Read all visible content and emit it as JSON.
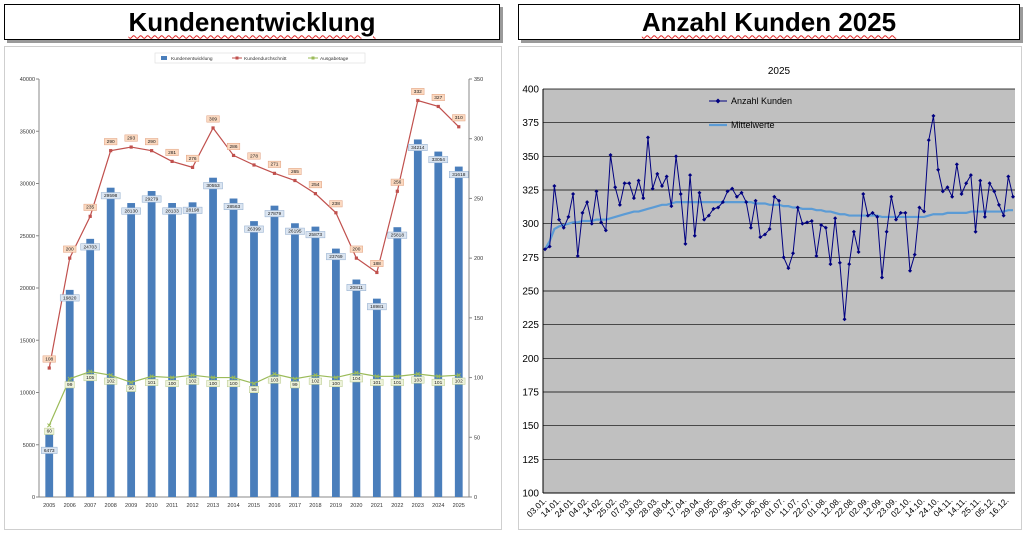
{
  "titles": {
    "left": "Kundenentwicklung",
    "right": "Anzahl Kunden 2025"
  },
  "chart_data": [
    {
      "type": "bar",
      "categories": [
        "2005",
        "2006",
        "2007",
        "2008",
        "2009",
        "2010",
        "2011",
        "2012",
        "2013",
        "2014",
        "2015",
        "2016",
        "2017",
        "2018",
        "2019",
        "2020",
        "2021",
        "2022",
        "2023",
        "2024",
        "2025"
      ],
      "series": [
        {
          "name": "Kundenentwicklung",
          "type": "bar",
          "axis": "left",
          "color": "#4a7ebb",
          "values": [
            6473,
            19820,
            24703,
            29598,
            28130,
            29279,
            28133,
            28198,
            30553,
            28563,
            26399,
            27879,
            26195,
            25873,
            23769,
            20811,
            18981,
            25818,
            34214,
            33054,
            31618
          ],
          "labels": [
            "6473",
            "19820",
            "24703",
            "29598",
            "28130",
            "29279",
            "28133",
            "28198",
            "30553",
            "28563",
            "26399",
            "27879",
            "26195",
            "25873",
            "23769",
            "20811",
            "18981",
            "25818",
            "34214",
            "33054",
            "31618"
          ]
        },
        {
          "name": "Kundendurchschnitt",
          "type": "line",
          "axis": "right",
          "color": "#c0504d",
          "values": [
            108,
            200,
            235,
            290,
            293,
            290,
            281,
            276,
            309,
            286,
            278,
            271,
            265,
            254,
            238,
            200,
            188,
            256,
            332,
            327,
            310
          ],
          "labels": [
            "108",
            "200",
            "235",
            "290",
            "293",
            "290",
            "281",
            "276",
            "309",
            "286",
            "278",
            "271",
            "265",
            "254",
            "238",
            "200",
            "188",
            "256",
            "332",
            "327",
            "310"
          ]
        },
        {
          "name": "Ausgabetage",
          "type": "line",
          "axis": "right",
          "color": "#9bbb59",
          "values": [
            60,
            99,
            105,
            102,
            96,
            101,
            100,
            102,
            100,
            100,
            95,
            103,
            99,
            102,
            100,
            104,
            101,
            101,
            103,
            101,
            102
          ],
          "labels": [
            "60",
            "99",
            "105",
            "102",
            "96",
            "101",
            "100",
            "102",
            "100",
            "100",
            "95",
            "103",
            "99",
            "102",
            "100",
            "104",
            "101",
            "101",
            "103",
            "101",
            "102"
          ]
        }
      ],
      "y_left": {
        "min": 0,
        "max": 40000,
        "step": 5000,
        "ticks": [
          "0",
          "5000",
          "10000",
          "15000",
          "20000",
          "25000",
          "30000",
          "35000",
          "40000"
        ]
      },
      "y_right": {
        "min": 0,
        "max": 350,
        "step": 50,
        "ticks": [
          "0",
          "50",
          "100",
          "150",
          "200",
          "250",
          "300",
          "350"
        ]
      },
      "legend": {
        "position": "top",
        "entries": [
          "Kundenentwicklung",
          "Kundendurchschnitt",
          "Ausgabetage"
        ]
      },
      "grid": false
    },
    {
      "type": "line",
      "title": "2025",
      "ylim": [
        100,
        400
      ],
      "y_ticks": [
        "100",
        "125",
        "150",
        "175",
        "200",
        "225",
        "250",
        "275",
        "300",
        "325",
        "350",
        "375",
        "400"
      ],
      "grid": true,
      "background": "#c0c0c0",
      "legend": {
        "position": "top-left",
        "entries": [
          "Anzahl Kunden",
          "Mittelwerte"
        ]
      },
      "x_labels": [
        "03.01.",
        "14.01.",
        "24.01.",
        "04.02.",
        "14.02.",
        "25.02.",
        "07.03.",
        "18.03.",
        "28.03.",
        "08.04.",
        "17.04.",
        "29.04.",
        "09.05.",
        "20.05.",
        "30.05.",
        "11.06.",
        "20.06.",
        "01.07.",
        "11.07.",
        "22.07.",
        "01.08.",
        "12.08.",
        "22.08.",
        "02.09.",
        "12.09.",
        "23.09.",
        "02.10.",
        "14.10.",
        "24.10.",
        "04.11.",
        "14.11.",
        "25.11.",
        "05.12.",
        "16.12."
      ],
      "series": [
        {
          "name": "Anzahl Kunden",
          "color": "#000080",
          "values": [
            281,
            283,
            328,
            303,
            297,
            305,
            322,
            276,
            308,
            316,
            300,
            324,
            301,
            295,
            351,
            327,
            314,
            330,
            330,
            319,
            332,
            319,
            364,
            326,
            337,
            328,
            335,
            313,
            350,
            322,
            285,
            336,
            291,
            323,
            303,
            306,
            311,
            312,
            316,
            324,
            326,
            320,
            323,
            316,
            297,
            317,
            290,
            292,
            296,
            320,
            317,
            275,
            267,
            278,
            312,
            300,
            301,
            302,
            276,
            299,
            297,
            270,
            304,
            271,
            229,
            270,
            294,
            279,
            322,
            306,
            308,
            305,
            260,
            294,
            320,
            303,
            308,
            308,
            265,
            277,
            312,
            309,
            362,
            380,
            340,
            324,
            327,
            320,
            344,
            322,
            330,
            336,
            294,
            332,
            305,
            330,
            324,
            314,
            306,
            335,
            320
          ]
        },
        {
          "name": "Mittelwerte",
          "color": "#5b9bd5",
          "values": [
            281,
            287,
            296,
            298,
            299,
            300,
            301,
            301,
            302,
            302,
            302,
            303,
            303,
            303,
            304,
            305,
            306,
            307,
            308,
            309,
            309,
            310,
            311,
            312,
            313,
            314,
            314,
            315,
            316,
            316,
            316,
            316,
            316,
            316,
            316,
            316,
            316,
            316,
            316,
            316,
            316,
            316,
            316,
            316,
            316,
            315,
            315,
            315,
            314,
            314,
            314,
            313,
            313,
            312,
            312,
            311,
            311,
            311,
            310,
            310,
            309,
            309,
            308,
            307,
            307,
            306,
            306,
            306,
            306,
            306,
            306,
            306,
            305,
            305,
            305,
            305,
            305,
            305,
            305,
            305,
            305,
            305,
            306,
            307,
            307,
            307,
            308,
            308,
            308,
            308,
            308,
            309,
            309,
            309,
            309,
            309,
            309,
            309,
            309,
            310,
            310
          ]
        }
      ]
    }
  ]
}
